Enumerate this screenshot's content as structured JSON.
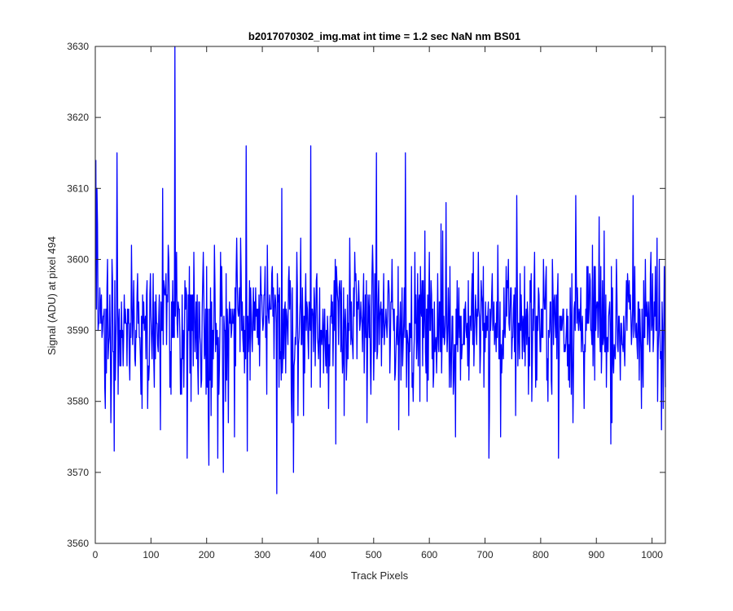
{
  "figure": {
    "background": "#ffffff",
    "title": "b2017070302_img.mat int time = 1.2 sec  NaN nm BS01"
  },
  "chart_data": {
    "type": "line",
    "title": "b2017070302_img.mat int time = 1.2 sec  NaN nm BS01",
    "xlabel": "Track Pixels",
    "ylabel": "Signal (ADU) at pixel 494",
    "xlim": [
      0,
      1024
    ],
    "ylim": [
      3560,
      3630
    ],
    "x_ticks": [
      0,
      100,
      200,
      300,
      400,
      500,
      600,
      700,
      800,
      900,
      1000
    ],
    "y_ticks": [
      3560,
      3570,
      3580,
      3590,
      3600,
      3610,
      3620,
      3630
    ],
    "grid": false,
    "legend": "none",
    "series": [
      {
        "color": "#0000ff",
        "x_start": 1,
        "x_step": 1,
        "n_points": 1024,
        "baseline": 3591,
        "peaks": [
          {
            "x": 1,
            "y": 3614
          },
          {
            "x": 3,
            "y": 3610
          },
          {
            "x": 34,
            "y": 3573
          },
          {
            "x": 39,
            "y": 3615
          },
          {
            "x": 117,
            "y": 3576
          },
          {
            "x": 121,
            "y": 3610
          },
          {
            "x": 143,
            "y": 3630
          },
          {
            "x": 165,
            "y": 3572
          },
          {
            "x": 204,
            "y": 3571
          },
          {
            "x": 220,
            "y": 3572
          },
          {
            "x": 230,
            "y": 3570
          },
          {
            "x": 250,
            "y": 3575
          },
          {
            "x": 271,
            "y": 3616
          },
          {
            "x": 273,
            "y": 3573
          },
          {
            "x": 326,
            "y": 3567
          },
          {
            "x": 335,
            "y": 3610
          },
          {
            "x": 356,
            "y": 3570
          },
          {
            "x": 387,
            "y": 3616
          },
          {
            "x": 432,
            "y": 3574
          },
          {
            "x": 505,
            "y": 3615
          },
          {
            "x": 545,
            "y": 3576
          },
          {
            "x": 557,
            "y": 3615
          },
          {
            "x": 630,
            "y": 3608
          },
          {
            "x": 647,
            "y": 3575
          },
          {
            "x": 707,
            "y": 3572
          },
          {
            "x": 728,
            "y": 3575
          },
          {
            "x": 757,
            "y": 3609
          },
          {
            "x": 832,
            "y": 3572
          },
          {
            "x": 863,
            "y": 3609
          },
          {
            "x": 926,
            "y": 3574
          },
          {
            "x": 966,
            "y": 3609
          },
          {
            "x": 1017,
            "y": 3576
          }
        ]
      }
    ]
  }
}
